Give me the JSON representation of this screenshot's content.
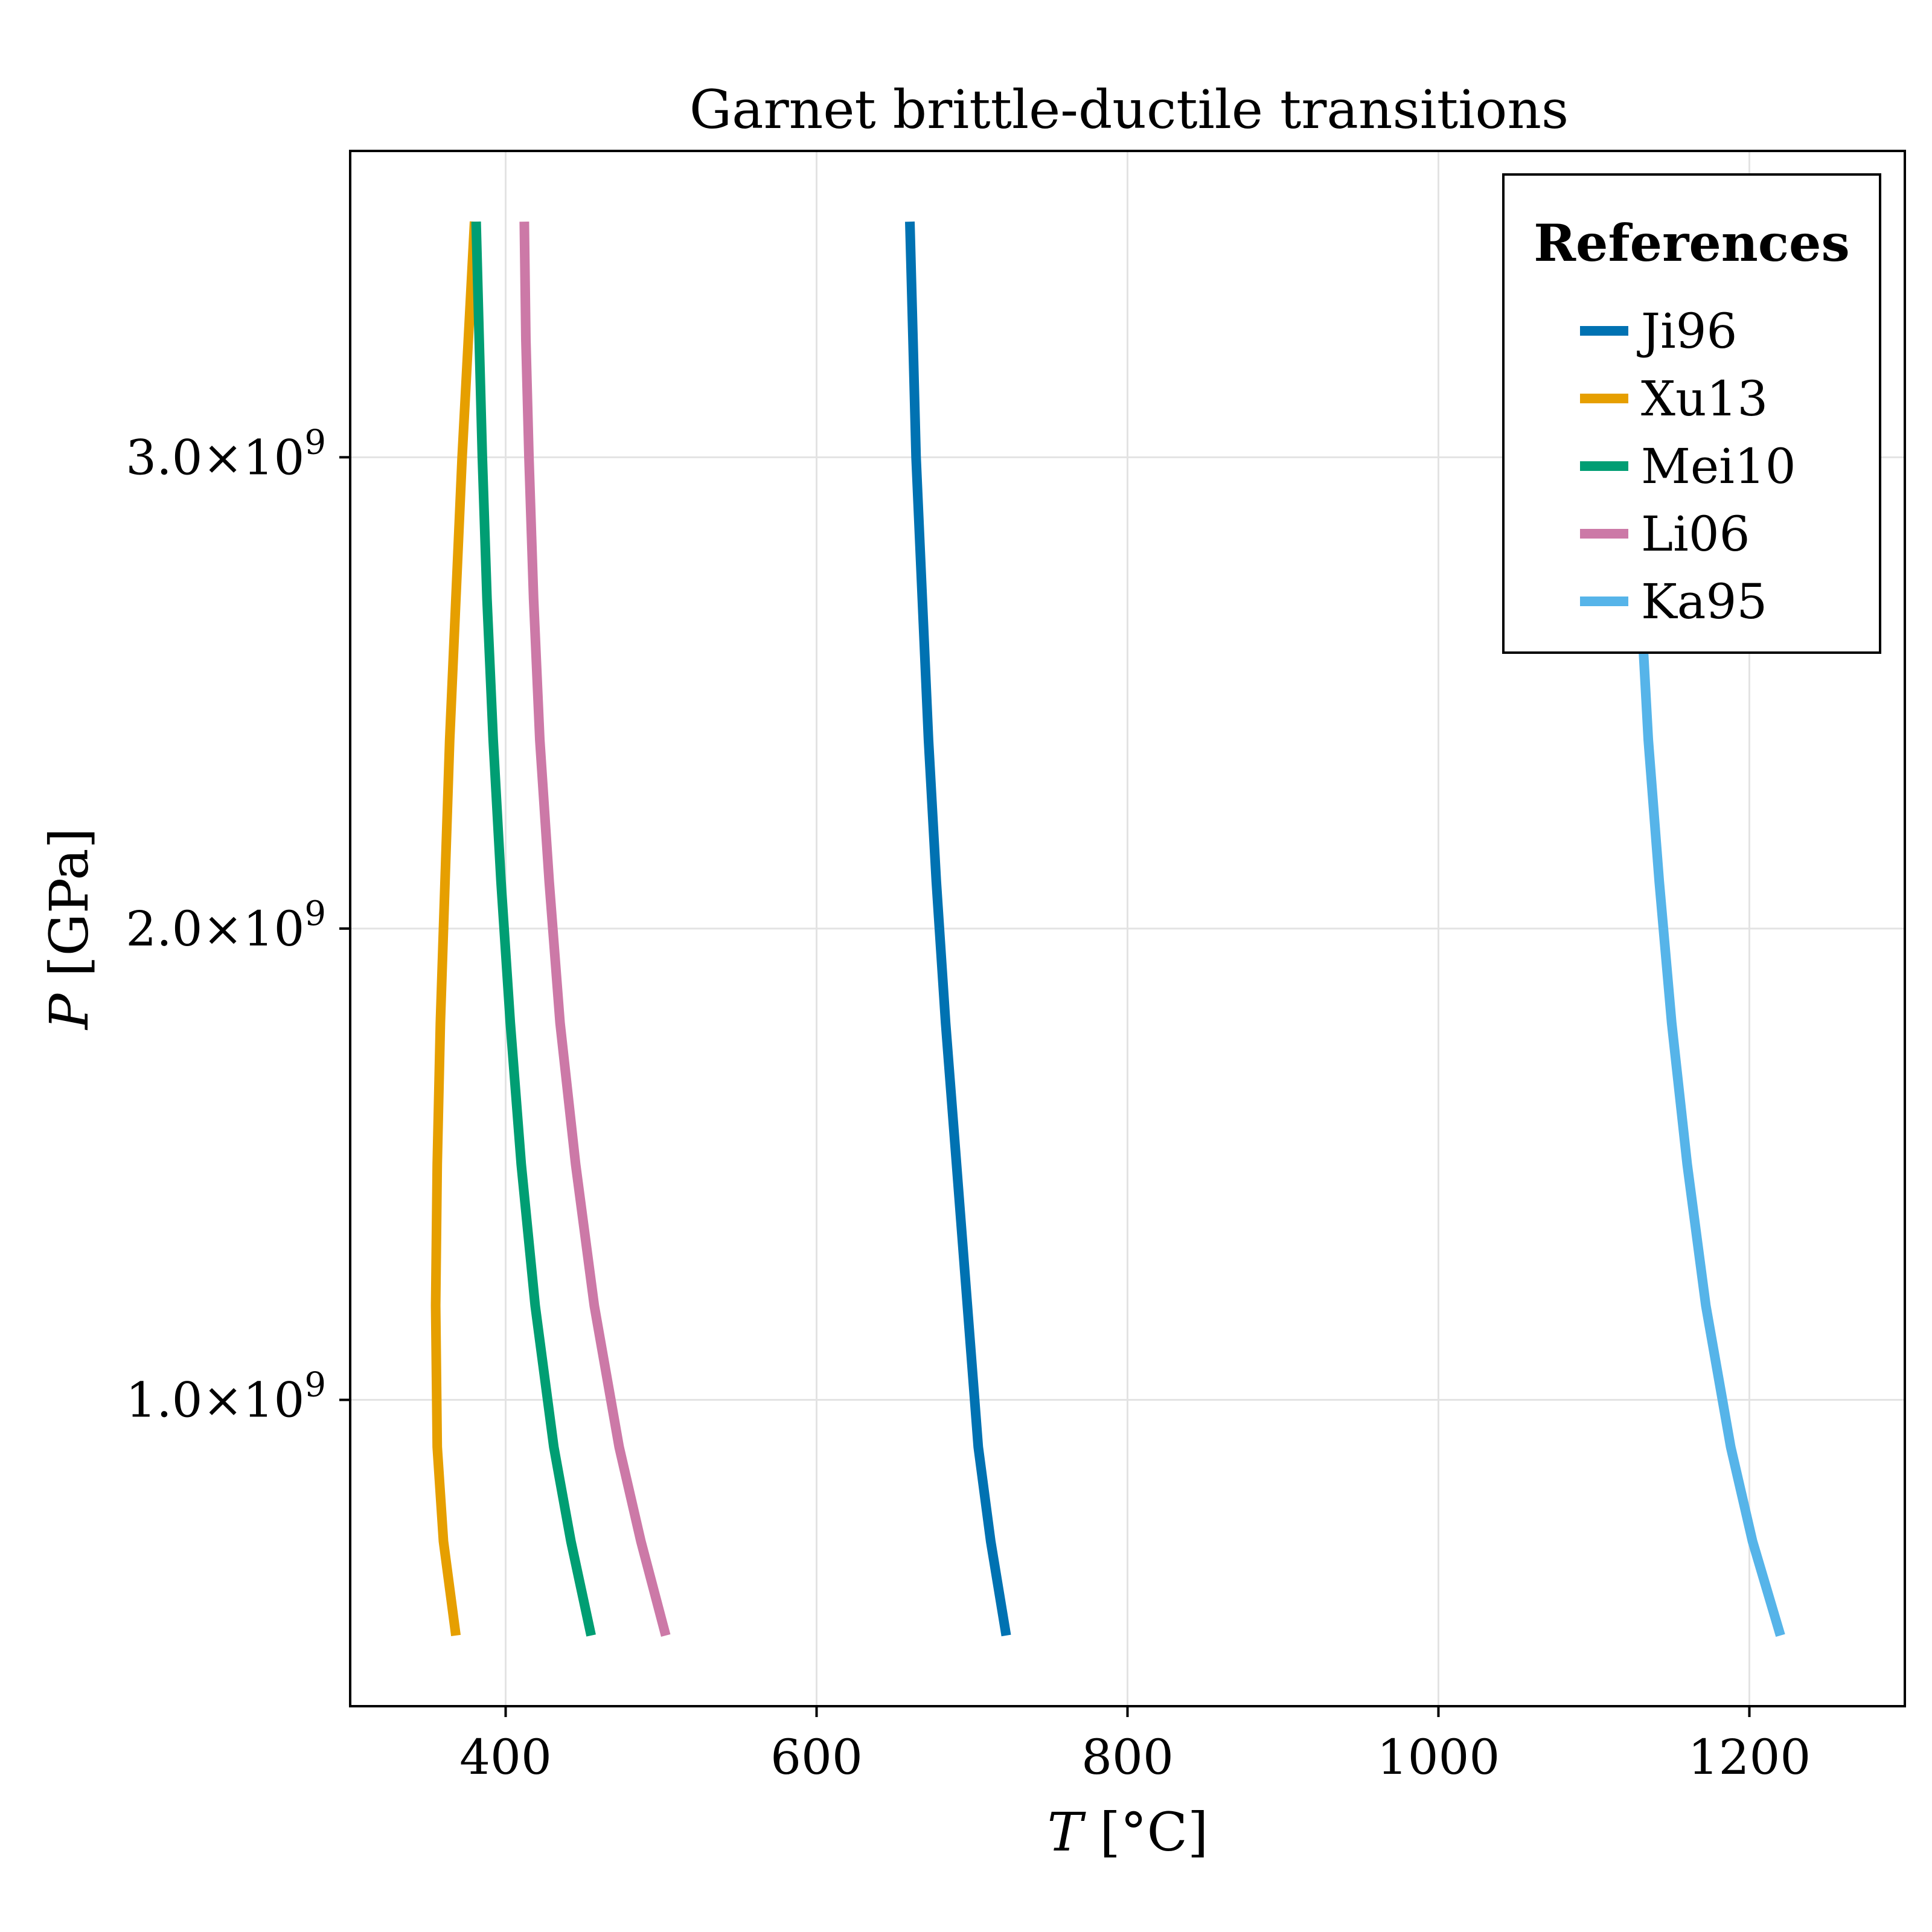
{
  "chart_data": {
    "type": "line",
    "title": "Garnet brittle-ductile transitions",
    "xlabel_var": "T",
    "xlabel_unit": "[°C]",
    "ylabel_var": "P",
    "ylabel_unit": "[GPa]",
    "xlim": [
      300,
      1300
    ],
    "ylim": [
      350000000,
      3650000000
    ],
    "xticks": [
      400,
      600,
      800,
      1000,
      1200
    ],
    "xtick_labels": [
      "400",
      "600",
      "800",
      "1000",
      "1200"
    ],
    "yticks": [
      1000000000,
      2000000000,
      3000000000
    ],
    "ytick_labels": [
      {
        "mantissa": "1.0×10",
        "exp": "9"
      },
      {
        "mantissa": "2.0×10",
        "exp": "9"
      },
      {
        "mantissa": "3.0×10",
        "exp": "9"
      }
    ],
    "grid": true,
    "legend": {
      "title": "References",
      "position": "top-right"
    },
    "series": [
      {
        "name": "Ji96",
        "color": "#0072b2",
        "points": [
          [
            722,
            500000000
          ],
          [
            712,
            700000000
          ],
          [
            704,
            900000000
          ],
          [
            697,
            1200000000
          ],
          [
            690,
            1500000000
          ],
          [
            683,
            1800000000
          ],
          [
            677,
            2100000000
          ],
          [
            672,
            2400000000
          ],
          [
            668,
            2700000000
          ],
          [
            664,
            3000000000
          ],
          [
            662,
            3250000000
          ],
          [
            660,
            3500000000
          ]
        ]
      },
      {
        "name": "Xu13",
        "color": "#e69f00",
        "points": [
          [
            368,
            500000000
          ],
          [
            360,
            700000000
          ],
          [
            356,
            900000000
          ],
          [
            355,
            1200000000
          ],
          [
            356,
            1500000000
          ],
          [
            358,
            1800000000
          ],
          [
            361,
            2100000000
          ],
          [
            364,
            2400000000
          ],
          [
            368,
            2700000000
          ],
          [
            372,
            3000000000
          ],
          [
            376,
            3250000000
          ],
          [
            380,
            3500000000
          ]
        ]
      },
      {
        "name": "Mei10",
        "color": "#009e73",
        "points": [
          [
            455,
            500000000
          ],
          [
            442,
            700000000
          ],
          [
            431,
            900000000
          ],
          [
            419,
            1200000000
          ],
          [
            410,
            1500000000
          ],
          [
            403,
            1800000000
          ],
          [
            397,
            2100000000
          ],
          [
            392,
            2400000000
          ],
          [
            388,
            2700000000
          ],
          [
            385,
            3000000000
          ],
          [
            383,
            3250000000
          ],
          [
            381,
            3500000000
          ]
        ]
      },
      {
        "name": "Li06",
        "color": "#cc79a7",
        "points": [
          [
            503,
            500000000
          ],
          [
            487,
            700000000
          ],
          [
            473,
            900000000
          ],
          [
            457,
            1200000000
          ],
          [
            445,
            1500000000
          ],
          [
            435,
            1800000000
          ],
          [
            428,
            2100000000
          ],
          [
            422,
            2400000000
          ],
          [
            418,
            2700000000
          ],
          [
            415,
            3000000000
          ],
          [
            413,
            3250000000
          ],
          [
            412,
            3500000000
          ]
        ]
      },
      {
        "name": "Ka95",
        "color": "#56b4e9",
        "points": [
          [
            1220,
            500000000
          ],
          [
            1202,
            700000000
          ],
          [
            1188,
            900000000
          ],
          [
            1172,
            1200000000
          ],
          [
            1160,
            1500000000
          ],
          [
            1150,
            1800000000
          ],
          [
            1142,
            2100000000
          ],
          [
            1135,
            2400000000
          ],
          [
            1130,
            2700000000
          ],
          [
            1125,
            3000000000
          ],
          [
            1122,
            3250000000
          ],
          [
            1120,
            3500000000
          ]
        ]
      }
    ]
  }
}
